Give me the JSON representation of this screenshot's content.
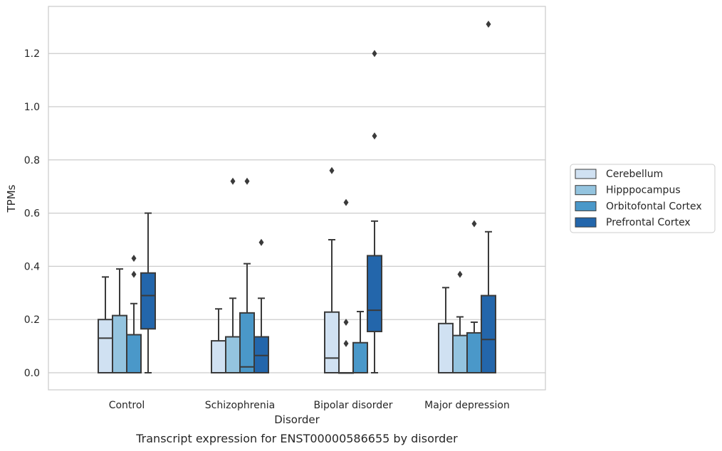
{
  "chart_data": {
    "type": "box",
    "title": "",
    "caption": "Transcript expression for ENST00000586655 by disorder",
    "xlabel": "Disorder",
    "ylabel": "TPMs",
    "ylim": [
      -0.065,
      1.38
    ],
    "yticks": [
      0.0,
      0.2,
      0.4,
      0.6,
      0.8,
      1.0,
      1.2
    ],
    "ytick_labels": [
      "0.0",
      "0.2",
      "0.4",
      "0.6",
      "0.8",
      "1.0",
      "1.2"
    ],
    "grid": "horizontal",
    "legend_position": "outside-right",
    "categories": [
      "Control",
      "Schizophrenia",
      "Bipolar disorder",
      "Major depression"
    ],
    "series": [
      {
        "name": "Cerebellum",
        "color": "#d0e1f2",
        "boxes": [
          {
            "whisker_low": 0.0,
            "q1": 0.0,
            "median": 0.13,
            "q3": 0.2,
            "whisker_high": 0.36,
            "outliers": []
          },
          {
            "whisker_low": 0.0,
            "q1": 0.0,
            "median": 0.0,
            "q3": 0.12,
            "whisker_high": 0.24,
            "outliers": []
          },
          {
            "whisker_low": 0.0,
            "q1": 0.0,
            "median": 0.055,
            "q3": 0.228,
            "whisker_high": 0.5,
            "outliers": [
              0.76
            ]
          },
          {
            "whisker_low": 0.0,
            "q1": 0.0,
            "median": 0.0,
            "q3": 0.185,
            "whisker_high": 0.32,
            "outliers": []
          }
        ]
      },
      {
        "name": "Hipppocampus",
        "color": "#94c4df",
        "boxes": [
          {
            "whisker_low": 0.0,
            "q1": 0.0,
            "median": 0.0,
            "q3": 0.215,
            "whisker_high": 0.39,
            "outliers": []
          },
          {
            "whisker_low": 0.0,
            "q1": 0.0,
            "median": 0.0,
            "q3": 0.135,
            "whisker_high": 0.28,
            "outliers": [
              0.72
            ]
          },
          {
            "whisker_low": 0.0,
            "q1": 0.0,
            "median": 0.0,
            "q3": 0.0,
            "whisker_high": 0.0,
            "outliers": [
              0.19,
              0.11,
              0.64
            ]
          },
          {
            "whisker_low": 0.0,
            "q1": 0.0,
            "median": 0.0,
            "q3": 0.14,
            "whisker_high": 0.21,
            "outliers": [
              0.37
            ]
          }
        ]
      },
      {
        "name": "Orbitofontal Cortex",
        "color": "#4a98c9",
        "boxes": [
          {
            "whisker_low": 0.0,
            "q1": 0.0,
            "median": 0.0,
            "q3": 0.143,
            "whisker_high": 0.26,
            "outliers": [
              0.37,
              0.43
            ]
          },
          {
            "whisker_low": 0.0,
            "q1": 0.0,
            "median": 0.022,
            "q3": 0.225,
            "whisker_high": 0.41,
            "outliers": [
              0.72
            ]
          },
          {
            "whisker_low": 0.0,
            "q1": 0.0,
            "median": 0.0,
            "q3": 0.113,
            "whisker_high": 0.23,
            "outliers": []
          },
          {
            "whisker_low": 0.0,
            "q1": 0.0,
            "median": 0.0,
            "q3": 0.15,
            "whisker_high": 0.19,
            "outliers": [
              0.56
            ]
          }
        ]
      },
      {
        "name": "Prefrontal Cortex",
        "color": "#2366ab",
        "boxes": [
          {
            "whisker_low": 0.0,
            "q1": 0.165,
            "median": 0.29,
            "q3": 0.375,
            "whisker_high": 0.6,
            "outliers": []
          },
          {
            "whisker_low": 0.0,
            "q1": 0.0,
            "median": 0.065,
            "q3": 0.135,
            "whisker_high": 0.28,
            "outliers": [
              0.49
            ]
          },
          {
            "whisker_low": 0.0,
            "q1": 0.155,
            "median": 0.235,
            "q3": 0.44,
            "whisker_high": 0.57,
            "outliers": [
              0.89,
              1.2
            ]
          },
          {
            "whisker_low": 0.0,
            "q1": 0.0,
            "median": 0.125,
            "q3": 0.29,
            "whisker_high": 0.53,
            "outliers": [
              1.31
            ]
          }
        ]
      }
    ]
  }
}
